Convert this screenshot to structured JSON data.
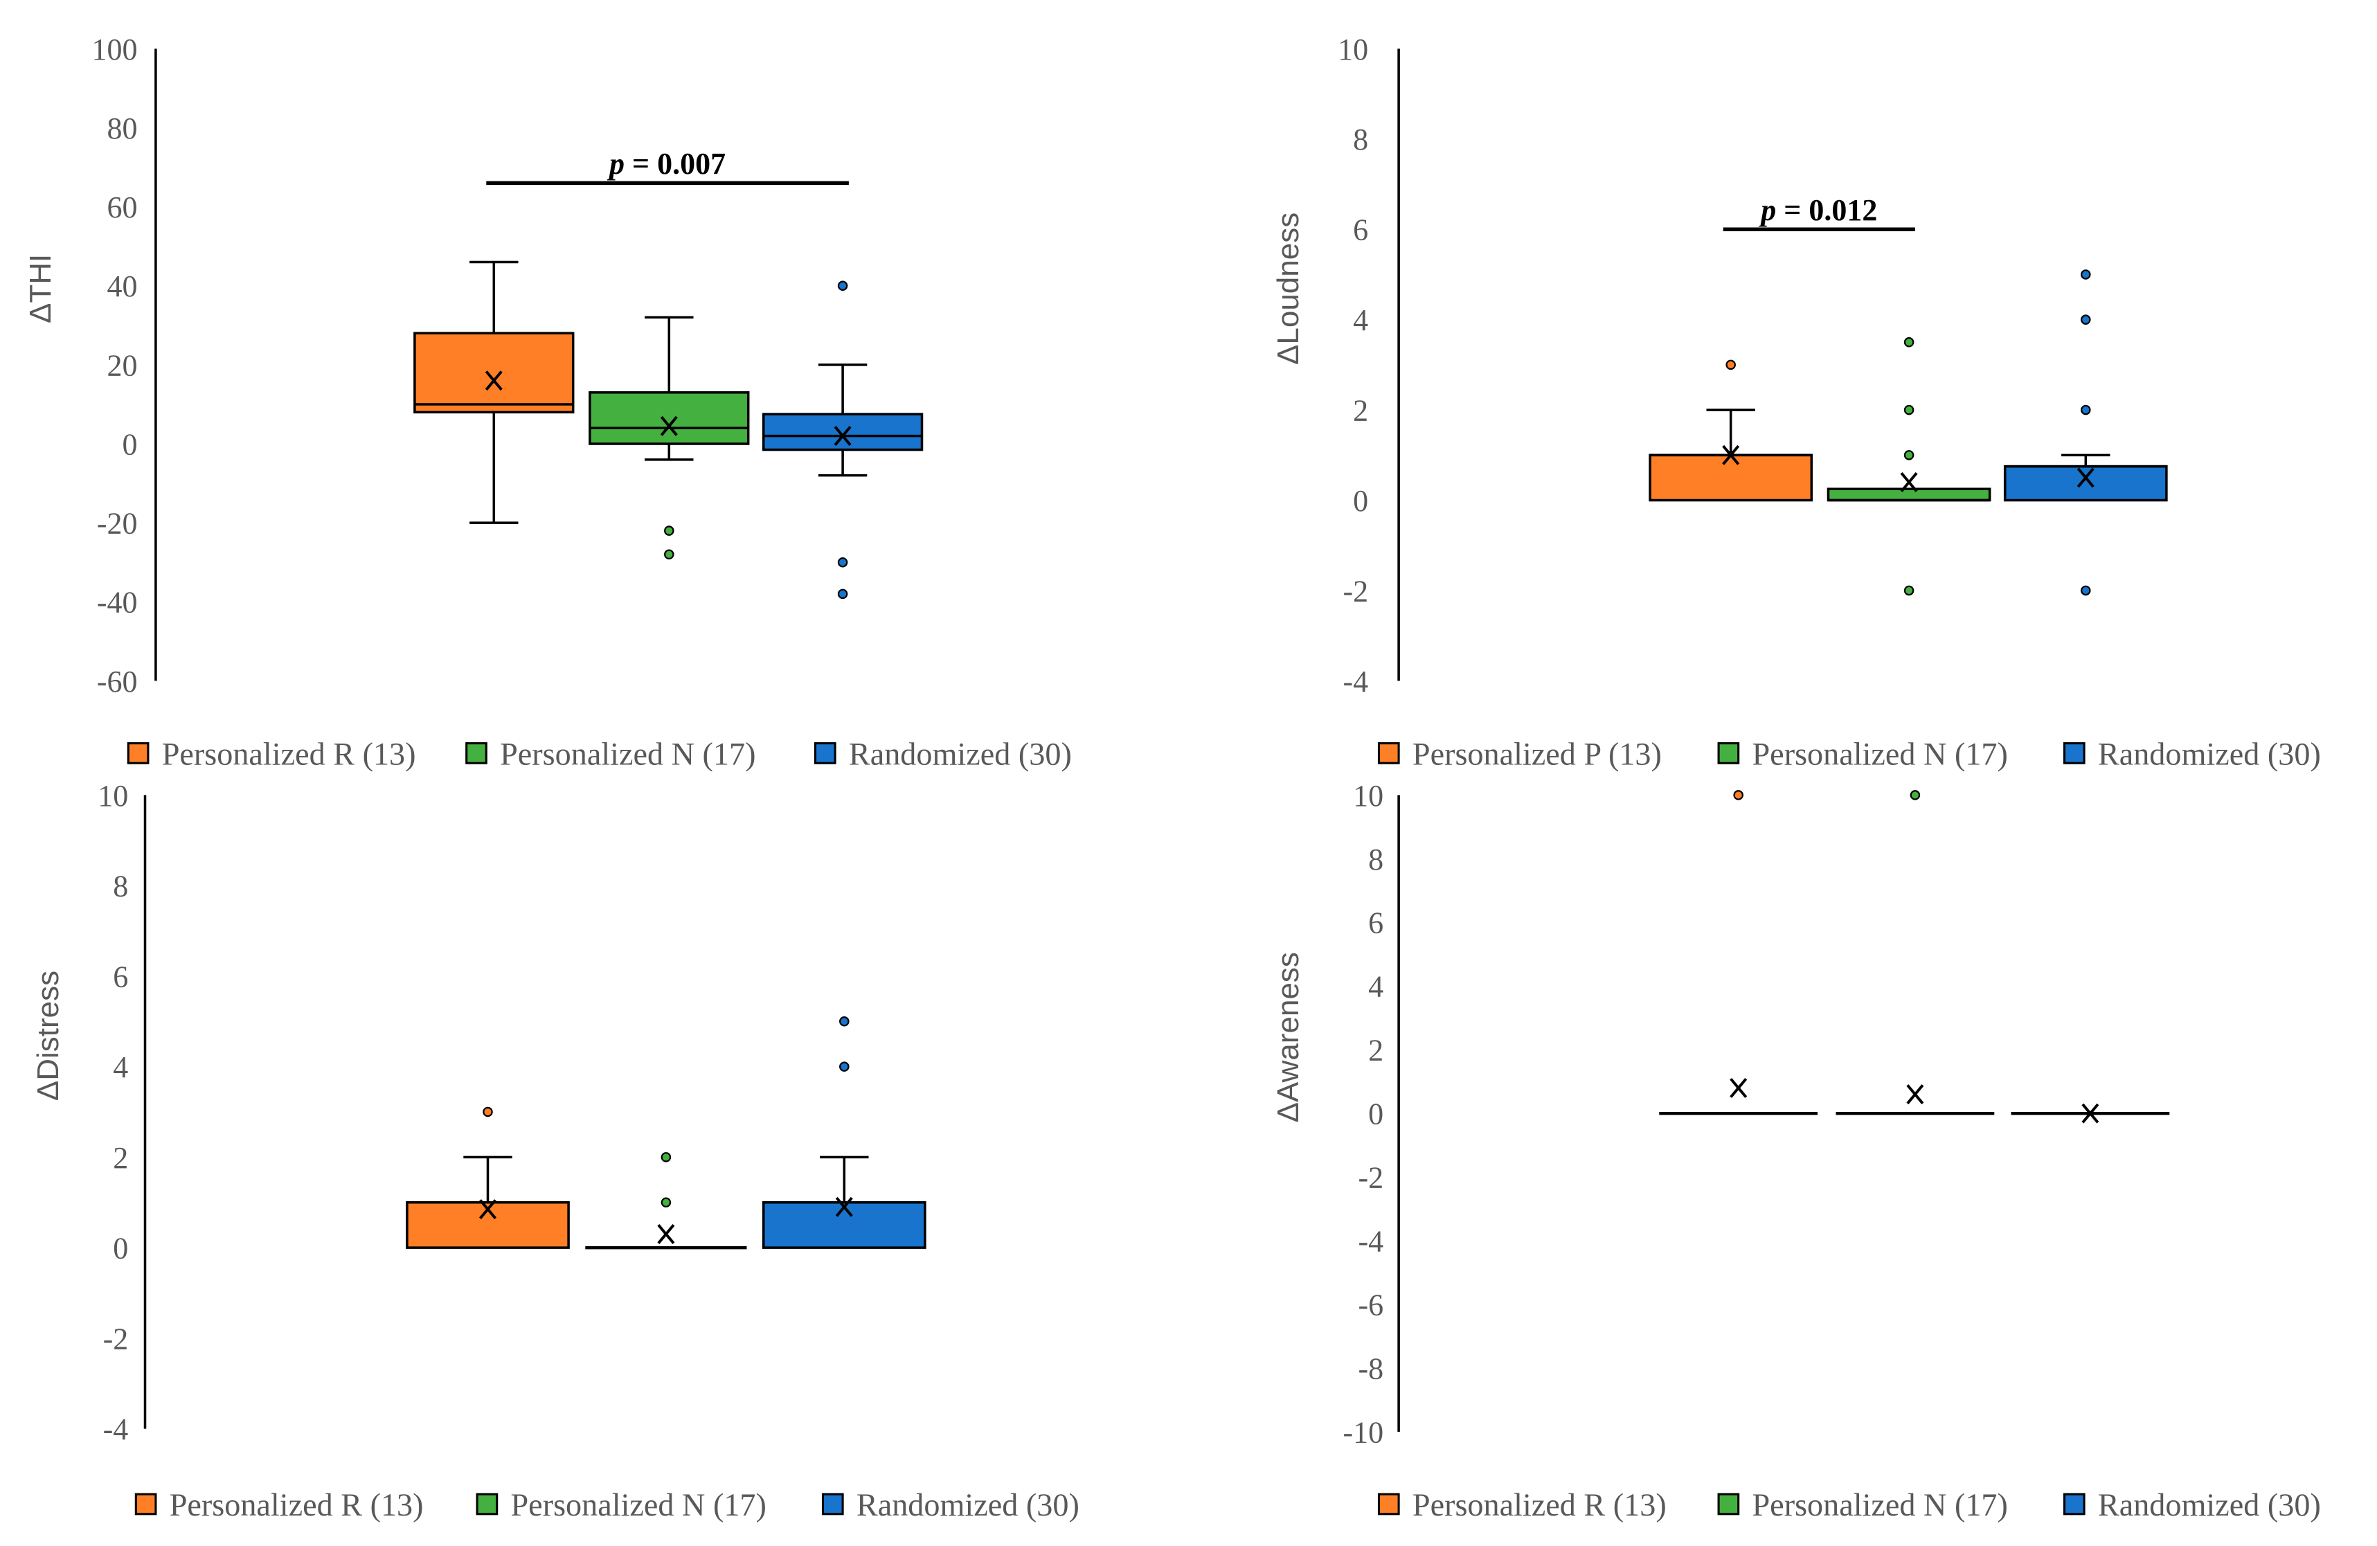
{
  "colors": {
    "orange": "#FF7F27",
    "green": "#44B03F",
    "blue": "#1874CD"
  },
  "chart_data": [
    {
      "type": "box",
      "ylabel": "ΔTHI",
      "ylim": [
        -60,
        100
      ],
      "ystep": 20,
      "yticks": [
        "100",
        "80",
        "60",
        "40",
        "20",
        "0",
        "-20",
        "-40",
        "-60"
      ],
      "legend": [
        "Personalized R (13)",
        "Personalized N (17)",
        "Randomized (30)"
      ],
      "legend_position": "bottom",
      "significance": {
        "p_symbol": "p",
        "value": "= 0.007",
        "from": 0,
        "to": 2,
        "y": 66
      },
      "groups": [
        {
          "name": "Personalized R (13)",
          "color": "#FF7F27",
          "whisker_low": -20,
          "q1": 8,
          "median": 10,
          "q3": 28,
          "whisker_high": 46,
          "mean": 16,
          "outliers": []
        },
        {
          "name": "Personalized N (17)",
          "color": "#44B03F",
          "whisker_low": -4,
          "q1": 0,
          "median": 4,
          "q3": 13,
          "whisker_high": 32,
          "mean": 4.5,
          "outliers": [
            -22,
            -28
          ]
        },
        {
          "name": "Randomized (30)",
          "color": "#1874CD",
          "whisker_low": -8,
          "q1": -1.5,
          "median": 2,
          "q3": 7.5,
          "whisker_high": 20,
          "mean": 2,
          "outliers": [
            40,
            -30,
            -38
          ]
        }
      ]
    },
    {
      "type": "box",
      "ylabel": "ΔLoudness",
      "ylim": [
        -4,
        10
      ],
      "ystep": 2,
      "yticks": [
        "10",
        "8",
        "6",
        "4",
        "2",
        "0",
        "-2",
        "-4"
      ],
      "legend": [
        "Personalized P (13)",
        "Personalized N (17)",
        "Randomized (30)"
      ],
      "legend_position": "bottom",
      "significance": {
        "p_symbol": "p",
        "value": "= 0.012",
        "from": 0,
        "to": 1,
        "y": 6
      },
      "groups": [
        {
          "name": "Personalized P (13)",
          "color": "#FF7F27",
          "whisker_low": 0,
          "q1": 0,
          "median": 1,
          "q3": 1,
          "whisker_high": 2,
          "mean": 1,
          "outliers": [
            3
          ]
        },
        {
          "name": "Personalized N (17)",
          "color": "#44B03F",
          "whisker_low": 0,
          "q1": 0,
          "median": 0,
          "q3": 0.25,
          "whisker_high": 0.25,
          "mean": 0.4,
          "outliers": [
            3.5,
            2,
            1,
            -2
          ]
        },
        {
          "name": "Randomized (30)",
          "color": "#1874CD",
          "whisker_low": 0,
          "q1": 0,
          "median": 0.75,
          "q3": 0.75,
          "whisker_high": 1,
          "mean": 0.5,
          "outliers": [
            5,
            4,
            2,
            -2
          ]
        }
      ]
    },
    {
      "type": "box",
      "ylabel": "ΔDistress",
      "ylim": [
        -4,
        10
      ],
      "ystep": 2,
      "yticks": [
        "10",
        "8",
        "6",
        "4",
        "2",
        "0",
        "-2",
        "-4"
      ],
      "legend": [
        "Personalized R (13)",
        "Personalized N (17)",
        "Randomized (30)"
      ],
      "legend_position": "bottom",
      "groups": [
        {
          "name": "Personalized R (13)",
          "color": "#FF7F27",
          "whisker_low": 0,
          "q1": 0,
          "median": 1,
          "q3": 1,
          "whisker_high": 2,
          "mean": 0.85,
          "outliers": [
            3
          ]
        },
        {
          "name": "Personalized N (17)",
          "color": "#44B03F",
          "whisker_low": 0,
          "q1": 0,
          "median": 0,
          "q3": 0,
          "whisker_high": 0,
          "mean": 0.3,
          "outliers": [
            2,
            1
          ]
        },
        {
          "name": "Randomized (30)",
          "color": "#1874CD",
          "whisker_low": 0,
          "q1": 0,
          "median": 1,
          "q3": 1,
          "whisker_high": 2,
          "mean": 0.9,
          "outliers": [
            5,
            4
          ]
        }
      ]
    },
    {
      "type": "box",
      "ylabel": "ΔAwareness",
      "ylim": [
        -10,
        10
      ],
      "ystep": 2,
      "yticks": [
        "10",
        "8",
        "6",
        "4",
        "2",
        "0",
        "-2",
        "-4",
        "-6",
        "-8",
        "-10"
      ],
      "legend": [
        "Personalized R (13)",
        "Personalized N (17)",
        "Randomized (30)"
      ],
      "legend_position": "bottom",
      "groups": [
        {
          "name": "Personalized R (13)",
          "color": "#FF7F27",
          "whisker_low": 0,
          "q1": 0,
          "median": 0,
          "q3": 0,
          "whisker_high": 0,
          "mean": 0.8,
          "outliers": [
            10
          ]
        },
        {
          "name": "Personalized N (17)",
          "color": "#44B03F",
          "whisker_low": 0,
          "q1": 0,
          "median": 0,
          "q3": 0,
          "whisker_high": 0,
          "mean": 0.6,
          "outliers": [
            10
          ]
        },
        {
          "name": "Randomized (30)",
          "color": "#1874CD",
          "whisker_low": 0,
          "q1": 0,
          "median": 0,
          "q3": 0,
          "whisker_high": 0,
          "mean": 0,
          "outliers": []
        }
      ]
    }
  ]
}
